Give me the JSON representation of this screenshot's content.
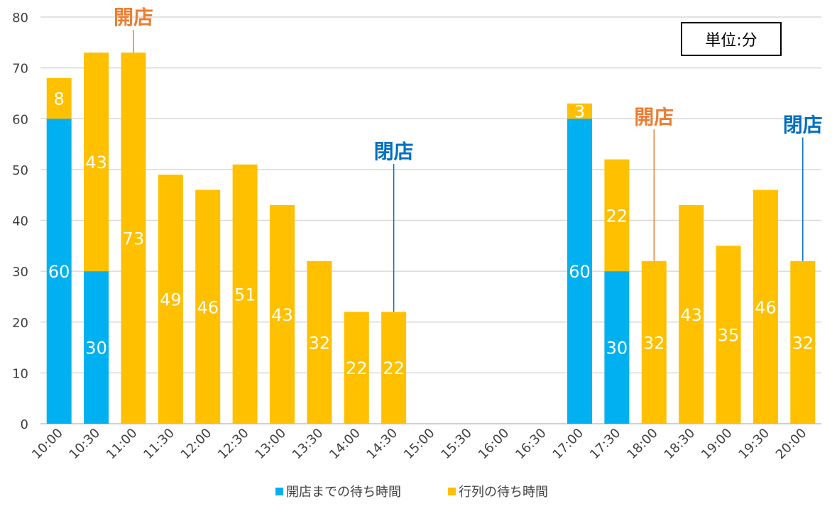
{
  "chart_data": {
    "type": "bar",
    "stacked": true,
    "categories": [
      "10:00",
      "10:30",
      "11:00",
      "11:30",
      "12:00",
      "12:30",
      "13:00",
      "13:30",
      "14:00",
      "14:30",
      "15:00",
      "15:30",
      "16:00",
      "16:30",
      "17:00",
      "17:30",
      "18:00",
      "18:30",
      "19:00",
      "19:30",
      "20:00"
    ],
    "series": [
      {
        "name": "開店までの待ち時間",
        "color": "#00B0F0",
        "values": [
          60,
          30,
          0,
          0,
          0,
          0,
          0,
          0,
          0,
          0,
          0,
          0,
          0,
          0,
          60,
          30,
          0,
          0,
          0,
          0,
          0
        ]
      },
      {
        "name": "行列の待ち時間",
        "color": "#FFC000",
        "values": [
          8,
          43,
          73,
          49,
          46,
          51,
          43,
          32,
          22,
          22,
          0,
          0,
          0,
          0,
          3,
          22,
          32,
          43,
          35,
          46,
          32
        ]
      }
    ],
    "ylim": [
      0,
      80
    ],
    "yticks": [
      0,
      10,
      20,
      30,
      40,
      50,
      60,
      70,
      80
    ],
    "grid": true,
    "legend_position": "bottom",
    "unit_label": "単位:分",
    "annotations": [
      {
        "text": "開店",
        "category": "11:00",
        "value": 73,
        "color": "#ED7D31"
      },
      {
        "text": "閉店",
        "category": "14:30",
        "value": 22,
        "color": "#0070C0"
      },
      {
        "text": "開店",
        "category": "18:00",
        "value": 32,
        "color": "#ED7D31"
      },
      {
        "text": "閉店",
        "category": "20:00",
        "value": 32,
        "color": "#0070C0"
      }
    ]
  }
}
